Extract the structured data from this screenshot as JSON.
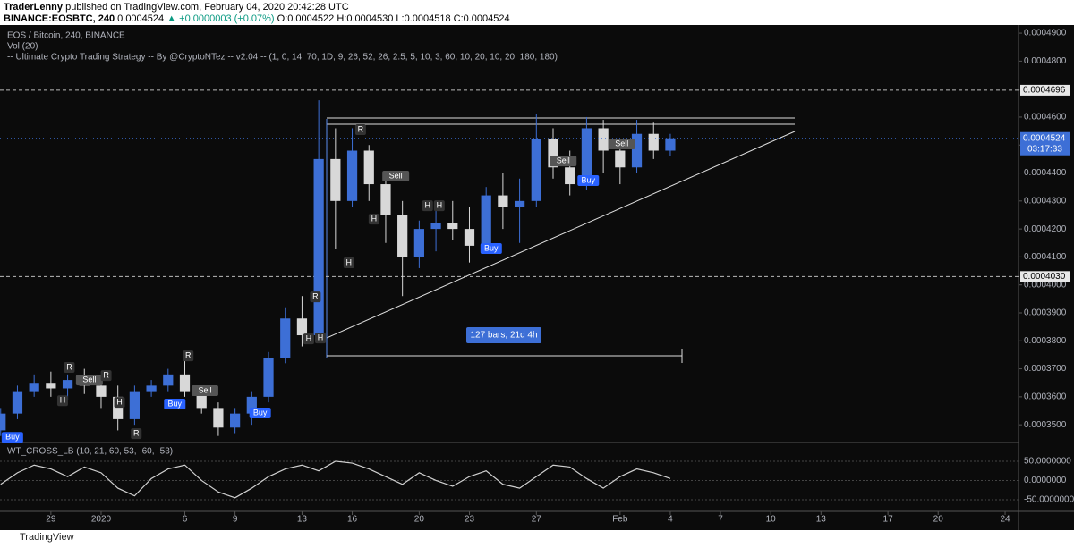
{
  "header": {
    "author": "TraderLenny",
    "published": "published on TradingView.com, February 04, 2020 20:42:28 UTC",
    "symbol": "BINANCE:EOSBTC, 240",
    "last": "0.0004524",
    "change": "▲ +0.0000003 (+0.07%)",
    "open": "O:0.0004522",
    "high": "H:0.0004530",
    "low": "L:0.0004518",
    "close": "C:0.0004524"
  },
  "footer": "TradingView",
  "chart_data": {
    "type": "candlestick",
    "legend": [
      "EOS / Bitcoin, 240, BINANCE",
      "Vol (20)",
      "-- Ultimate Crypto Trading Strategy -- By @CryptoNTez -- v2.04 -- (1, 0, 14, 70, 1D, 9, 26, 52, 26, 2.5, 5, 10, 3, 60, 10, 20, 10, 20, 180, 180)"
    ],
    "up_color": "#3d6fd6",
    "down_color": "#d8d8d8",
    "x": [
      -6,
      -5,
      -4,
      -3,
      -2,
      -1,
      0,
      1,
      2,
      3,
      4,
      5,
      6,
      7,
      8,
      9,
      10,
      11,
      12,
      13,
      14,
      15,
      16,
      17,
      18,
      19,
      20,
      21,
      22,
      23,
      24,
      25,
      26,
      27,
      28,
      29,
      30,
      31,
      32,
      33,
      34
    ],
    "open": [
      0.000348,
      0.000354,
      0.000362,
      0.000365,
      0.000363,
      0.000366,
      0.000364,
      0.00036,
      0.000352,
      0.000362,
      0.000364,
      0.000368,
      0.000362,
      0.000356,
      0.000349,
      0.000354,
      0.00036,
      0.000374,
      0.000388,
      0.000382,
      0.000445,
      0.00043,
      0.000448,
      0.000436,
      0.000425,
      0.00041,
      0.00042,
      0.000422,
      0.00042,
      0.000414,
      0.000432,
      0.000428,
      0.00043,
      0.000452,
      0.000442,
      0.000436,
      0.000456,
      0.000448,
      0.000442,
      0.000454,
      0.000448
    ],
    "high": [
      0.000356,
      0.000364,
      0.000368,
      0.000369,
      0.000368,
      0.00037,
      0.000366,
      0.000364,
      0.000364,
      0.000366,
      0.00037,
      0.000374,
      0.000364,
      0.000358,
      0.000356,
      0.000362,
      0.000376,
      0.000392,
      0.000396,
      0.000466,
      0.000456,
      0.000456,
      0.00045,
      0.00044,
      0.00043,
      0.000423,
      0.000428,
      0.00043,
      0.000428,
      0.000435,
      0.00044,
      0.000438,
      0.000461,
      0.000456,
      0.000448,
      0.00046,
      0.000459,
      0.00045,
      0.000459,
      0.000458,
      0.000454
    ],
    "low": [
      0.000346,
      0.000352,
      0.00036,
      0.00036,
      0.000359,
      0.000361,
      0.000356,
      0.000348,
      0.00035,
      0.00036,
      0.000362,
      0.00036,
      0.000354,
      0.000346,
      0.000347,
      0.00035,
      0.000358,
      0.000372,
      0.000378,
      0.00038,
      0.000413,
      0.000428,
      0.00043,
      0.000415,
      0.000396,
      0.000406,
      0.000412,
      0.000416,
      0.000408,
      0.000412,
      0.00042,
      0.000415,
      0.000428,
      0.000438,
      0.000432,
      0.000434,
      0.00044,
      0.000436,
      0.00044,
      0.000445,
      0.000446
    ],
    "close": [
      0.000354,
      0.000362,
      0.000365,
      0.000363,
      0.000366,
      0.000364,
      0.00036,
      0.000352,
      0.000362,
      0.000364,
      0.000368,
      0.000362,
      0.000356,
      0.000349,
      0.000354,
      0.00036,
      0.000374,
      0.000388,
      0.000382,
      0.000445,
      0.00043,
      0.000448,
      0.000436,
      0.000425,
      0.00041,
      0.00042,
      0.000422,
      0.00042,
      0.000414,
      0.000432,
      0.000428,
      0.00043,
      0.000452,
      0.000442,
      0.000436,
      0.000456,
      0.000448,
      0.000442,
      0.000454,
      0.000448,
      0.0004524
    ],
    "xlim": [
      -6.04,
      54.8
    ],
    "xticks": [
      {
        "value": -3,
        "label": "29"
      },
      {
        "value": 0,
        "label": "2020"
      },
      {
        "value": 5,
        "label": "6"
      },
      {
        "value": 8,
        "label": "9"
      },
      {
        "value": 12,
        "label": "13"
      },
      {
        "value": 15,
        "label": "16"
      },
      {
        "value": 19,
        "label": "20"
      },
      {
        "value": 22,
        "label": "23"
      },
      {
        "value": 26,
        "label": "27"
      },
      {
        "value": 31,
        "label": "Feb"
      },
      {
        "value": 34,
        "label": "4"
      },
      {
        "value": 37,
        "label": "7"
      },
      {
        "value": 40,
        "label": "10"
      },
      {
        "value": 43,
        "label": "13"
      },
      {
        "value": 47,
        "label": "17"
      },
      {
        "value": 50,
        "label": "20"
      },
      {
        "value": 54,
        "label": "24"
      }
    ],
    "ylim": [
      0.0003443,
      0.0004929
    ],
    "yticks": [
      {
        "value": 0.00035,
        "label": "0.0003500"
      },
      {
        "value": 0.00036,
        "label": "0.0003600"
      },
      {
        "value": 0.00037,
        "label": "0.0003700"
      },
      {
        "value": 0.00038,
        "label": "0.0003800"
      },
      {
        "value": 0.00039,
        "label": "0.0003900"
      },
      {
        "value": 0.0004,
        "label": "0.0004000"
      },
      {
        "value": 0.00041,
        "label": "0.0004100"
      },
      {
        "value": 0.00042,
        "label": "0.0004200"
      },
      {
        "value": 0.00043,
        "label": "0.0004300"
      },
      {
        "value": 0.00044,
        "label": "0.0004400"
      },
      {
        "value": 0.00045,
        "label": "0.0004500"
      },
      {
        "value": 0.00046,
        "label": "0.0004600"
      },
      {
        "value": 0.00047,
        "label": "0.0004700"
      },
      {
        "value": 0.00048,
        "label": "0.0004800"
      },
      {
        "value": 0.00049,
        "label": "0.0004900"
      }
    ],
    "levels": [
      {
        "value": 0.0004696,
        "label": "0.0004696"
      },
      {
        "value": 0.000403,
        "label": "0.0004030"
      }
    ],
    "last_price": {
      "value": 0.0004524,
      "label": "0.0004524",
      "countdown": "03:17:33"
    },
    "measure_label": "127 bars, 21d 4h",
    "annotations": [
      {
        "text": "Buy",
        "x": -5.3,
        "y": 0.0003455
      },
      {
        "text": "R",
        "x": -1.9,
        "y": 0.0003705
      },
      {
        "text": "H",
        "x": -2.3,
        "y": 0.0003586
      },
      {
        "text": "Sell",
        "x": -0.7,
        "y": 0.000366
      },
      {
        "text": "R",
        "x": 0.3,
        "y": 0.0003676
      },
      {
        "text": "H",
        "x": 1.1,
        "y": 0.000358
      },
      {
        "text": "R",
        "x": 2.1,
        "y": 0.0003468
      },
      {
        "text": "Buy",
        "x": 4.4,
        "y": 0.0003574
      },
      {
        "text": "R",
        "x": 5.2,
        "y": 0.0003746
      },
      {
        "text": "Sell",
        "x": 6.2,
        "y": 0.0003622
      },
      {
        "text": "Buy",
        "x": 9.5,
        "y": 0.0003542
      },
      {
        "text": "R",
        "x": 12.8,
        "y": 0.0003957
      },
      {
        "text": "H",
        "x": 12.4,
        "y": 0.0003807
      },
      {
        "text": "H",
        "x": 13.1,
        "y": 0.000381
      },
      {
        "text": "R",
        "x": 15.5,
        "y": 0.0004555
      },
      {
        "text": "H",
        "x": 14.8,
        "y": 0.0004079
      },
      {
        "text": "H",
        "x": 16.3,
        "y": 0.0004235
      },
      {
        "text": "Sell",
        "x": 17.6,
        "y": 0.0004389
      },
      {
        "text": "H",
        "x": 19.5,
        "y": 0.0004283
      },
      {
        "text": "H",
        "x": 20.2,
        "y": 0.0004283
      },
      {
        "text": "Buy",
        "x": 23.3,
        "y": 0.000413
      },
      {
        "text": "Sell",
        "x": 27.6,
        "y": 0.0004443
      },
      {
        "text": "Buy",
        "x": 29.1,
        "y": 0.0004373
      },
      {
        "text": "Sell",
        "x": 31.1,
        "y": 0.0004504
      }
    ],
    "oscillator": {
      "name": "WT_CROSS_LB (10, 21, 60, 53, -60, -53)",
      "color": "#d0d0d0",
      "ylim": [
        -75.6,
        94
      ],
      "yticks": [
        {
          "value": 50,
          "label": "50.0000000"
        },
        {
          "value": 0,
          "label": "0.0000000"
        },
        {
          "value": -50,
          "label": "-50.0000000"
        }
      ],
      "values": [
        -10,
        20,
        40,
        30,
        10,
        35,
        20,
        -20,
        -40,
        5,
        30,
        40,
        0,
        -30,
        -45,
        -20,
        10,
        30,
        40,
        25,
        50,
        45,
        30,
        10,
        -10,
        20,
        0,
        -15,
        10,
        25,
        -10,
        -20,
        10,
        40,
        35,
        5,
        -20,
        10,
        30,
        20,
        5
      ]
    }
  }
}
